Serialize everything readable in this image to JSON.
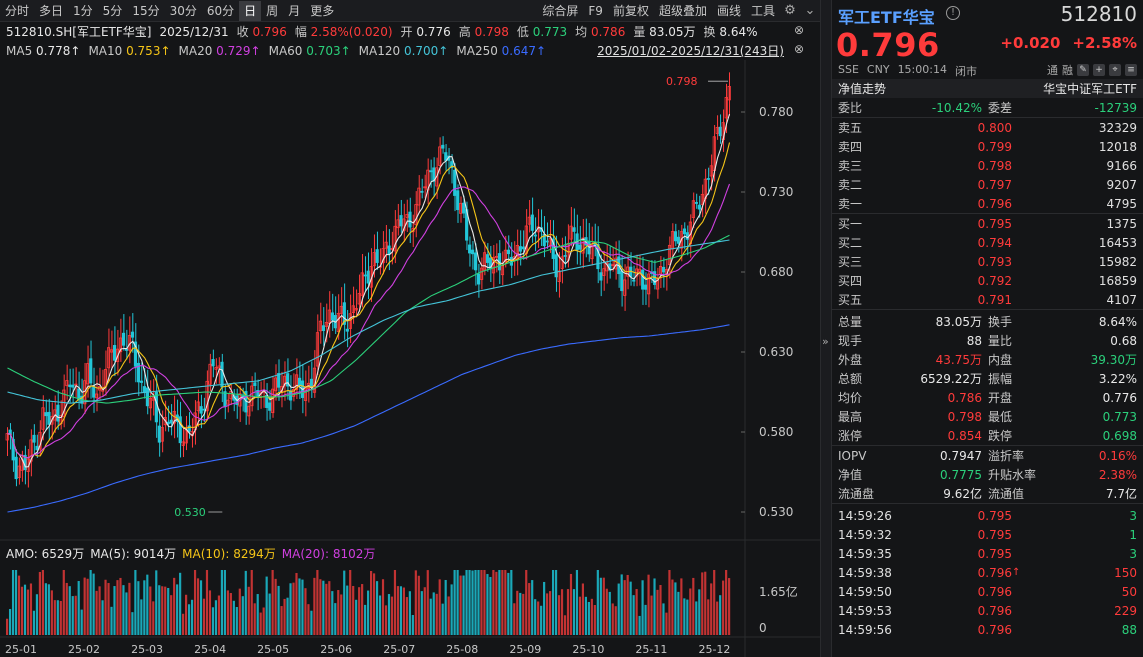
{
  "toolbar": {
    "periods": [
      "分时",
      "多日",
      "1分",
      "5分",
      "15分",
      "30分",
      "60分",
      "日",
      "周",
      "月",
      "更多"
    ],
    "active_period": "日",
    "tools": [
      "综合屏",
      "F9",
      "前复权",
      "超级叠加",
      "画线",
      "工具"
    ],
    "icons": [
      "gear-icon",
      "chevron-down-icon"
    ]
  },
  "info": {
    "symbol": "512810.SH[军工ETF华宝]",
    "date": "2025/12/31",
    "close_label": "收",
    "close": "0.796",
    "amp_label": "幅",
    "amp": "2.58%(0.020)",
    "open_label": "开",
    "open": "0.776",
    "high_label": "高",
    "high": "0.798",
    "low_label": "低",
    "low": "0.773",
    "avg_label": "均",
    "avg": "0.786",
    "vol_label": "量",
    "vol": "83.05万",
    "turn_label": "换",
    "turn": "8.64%"
  },
  "ma": [
    {
      "label": "MA5",
      "value": "0.778↑",
      "color": "#e8e8e8"
    },
    {
      "label": "MA10",
      "value": "0.753↑",
      "color": "#f5c518"
    },
    {
      "label": "MA20",
      "value": "0.729↑",
      "color": "#d040e0"
    },
    {
      "label": "MA60",
      "value": "0.703↑",
      "color": "#2bd07b"
    },
    {
      "label": "MA120",
      "value": "0.700↑",
      "color": "#44c4d8"
    },
    {
      "label": "MA250",
      "value": "0.647↑",
      "color": "#3a6bff"
    }
  ],
  "range": "2025/01/02-2025/12/31(243日)",
  "chart_data": {
    "type": "candlestick",
    "y_ticks": [
      "0.780",
      "0.730",
      "0.680",
      "0.630",
      "0.580",
      "0.530"
    ],
    "ylim": [
      0.525,
      0.8
    ],
    "x_ticks": [
      "25-01",
      "25-02",
      "25-03",
      "25-04",
      "25-05",
      "25-06",
      "25-07",
      "25-08",
      "25-09",
      "25-10",
      "25-11",
      "25-12"
    ],
    "high_marker": "0.798",
    "low_marker": "0.530",
    "close_path": [
      0.575,
      0.56,
      0.558,
      0.572,
      0.59,
      0.585,
      0.598,
      0.61,
      0.603,
      0.615,
      0.6,
      0.622,
      0.628,
      0.64,
      0.632,
      0.61,
      0.6,
      0.58,
      0.59,
      0.582,
      0.578,
      0.585,
      0.6,
      0.625,
      0.61,
      0.6,
      0.598,
      0.602,
      0.605,
      0.6,
      0.605,
      0.612,
      0.608,
      0.605,
      0.61,
      0.64,
      0.655,
      0.65,
      0.648,
      0.66,
      0.672,
      0.69,
      0.685,
      0.7,
      0.712,
      0.708,
      0.725,
      0.735,
      0.748,
      0.755,
      0.74,
      0.715,
      0.69,
      0.68,
      0.685,
      0.69,
      0.684,
      0.693,
      0.7,
      0.71,
      0.705,
      0.69,
      0.682,
      0.7,
      0.702,
      0.695,
      0.69,
      0.68,
      0.684,
      0.678,
      0.675,
      0.68,
      0.672,
      0.676,
      0.69,
      0.7,
      0.705,
      0.715,
      0.73,
      0.75,
      0.77,
      0.796
    ],
    "ma250_path": [
      0.53,
      0.533,
      0.537,
      0.542,
      0.548,
      0.553,
      0.557,
      0.56,
      0.563,
      0.566,
      0.57,
      0.573,
      0.578,
      0.584,
      0.592,
      0.6,
      0.608,
      0.616,
      0.622,
      0.628,
      0.632,
      0.635,
      0.637,
      0.639,
      0.64,
      0.642,
      0.644,
      0.647
    ],
    "ma60_path": [
      0.62,
      0.612,
      0.605,
      0.6,
      0.598,
      0.6,
      0.603,
      0.604,
      0.605,
      0.604,
      0.602,
      0.602,
      0.605,
      0.612,
      0.625,
      0.64,
      0.655,
      0.665,
      0.672,
      0.68,
      0.685,
      0.69,
      0.695,
      0.7,
      0.698,
      0.69,
      0.686,
      0.69,
      0.695,
      0.703
    ],
    "ma120_path": [
      0.605,
      0.6,
      0.598,
      0.6,
      0.604,
      0.606,
      0.608,
      0.61,
      0.612,
      0.618,
      0.628,
      0.64,
      0.65,
      0.658,
      0.662,
      0.668,
      0.672,
      0.678,
      0.682,
      0.686,
      0.69,
      0.694,
      0.697,
      0.7
    ],
    "vol_ticks": [
      "1.65亿",
      "0"
    ],
    "amo": {
      "label": "AMO: 6529万",
      "ma5": "MA(5): 9014万",
      "ma10": "MA(10): 8294万",
      "ma20": "MA(20): 8102万"
    }
  },
  "right": {
    "name": "军工ETF华宝",
    "code": "512810",
    "price": "0.796",
    "change": "+0.020",
    "change_pct": "+2.58%",
    "exchange": "SSE",
    "currency": "CNY",
    "time": "15:00:14",
    "status": "闭市",
    "tags": [
      "通",
      "融"
    ],
    "nav_label": "净值走势",
    "index_name": "华宝中证军工ETF",
    "weibi_label": "委比",
    "weibi": "-10.42%",
    "weicha_label": "委差",
    "weicha": "-12739",
    "asks": [
      {
        "label": "卖五",
        "price": "0.800",
        "vol": "32329"
      },
      {
        "label": "卖四",
        "price": "0.799",
        "vol": "12018"
      },
      {
        "label": "卖三",
        "price": "0.798",
        "vol": "9166"
      },
      {
        "label": "卖二",
        "price": "0.797",
        "vol": "9207"
      },
      {
        "label": "卖一",
        "price": "0.796",
        "vol": "4795"
      }
    ],
    "bids": [
      {
        "label": "买一",
        "price": "0.795",
        "vol": "1375"
      },
      {
        "label": "买二",
        "price": "0.794",
        "vol": "16453"
      },
      {
        "label": "买三",
        "price": "0.793",
        "vol": "15982"
      },
      {
        "label": "买四",
        "price": "0.792",
        "vol": "16859"
      },
      {
        "label": "买五",
        "price": "0.791",
        "vol": "4107"
      }
    ],
    "stats": [
      {
        "l1": "总量",
        "v1": "83.05万",
        "c1": "white",
        "l2": "换手",
        "v2": "8.64%",
        "c2": "white"
      },
      {
        "l1": "现手",
        "v1": "88",
        "c1": "white",
        "l2": "量比",
        "v2": "0.68",
        "c2": "white"
      },
      {
        "l1": "外盘",
        "v1": "43.75万",
        "c1": "up",
        "l2": "内盘",
        "v2": "39.30万",
        "c2": "down"
      },
      {
        "l1": "总额",
        "v1": "6529.22万",
        "c1": "white",
        "l2": "振幅",
        "v2": "3.22%",
        "c2": "white"
      },
      {
        "l1": "均价",
        "v1": "0.786",
        "c1": "up",
        "l2": "开盘",
        "v2": "0.776",
        "c2": "white"
      },
      {
        "l1": "最高",
        "v1": "0.798",
        "c1": "up",
        "l2": "最低",
        "v2": "0.773",
        "c2": "down"
      },
      {
        "l1": "涨停",
        "v1": "0.854",
        "c1": "up",
        "l2": "跌停",
        "v2": "0.698",
        "c2": "down"
      }
    ],
    "stats2": [
      {
        "l1": "IOPV",
        "v1": "0.7947",
        "c1": "white",
        "l2": "溢折率",
        "v2": "0.16%",
        "c2": "up"
      },
      {
        "l1": "净值",
        "v1": "0.7775",
        "c1": "down",
        "l2": "升贴水率",
        "v2": "2.38%",
        "c2": "up"
      },
      {
        "l1": "流通盘",
        "v1": "9.62亿",
        "c1": "white",
        "l2": "流通值",
        "v2": "7.7亿",
        "c2": "white"
      }
    ],
    "ticks": [
      {
        "time": "14:59:26",
        "price": "0.795",
        "arrow": "",
        "vol": "3"
      },
      {
        "time": "14:59:32",
        "price": "0.795",
        "arrow": "",
        "vol": "1"
      },
      {
        "time": "14:59:35",
        "price": "0.795",
        "arrow": "",
        "vol": "3"
      },
      {
        "time": "14:59:38",
        "price": "0.796",
        "arrow": "↑",
        "vol": "150"
      },
      {
        "time": "14:59:50",
        "price": "0.796",
        "arrow": "",
        "vol": "50"
      },
      {
        "time": "14:59:53",
        "price": "0.796",
        "arrow": "",
        "vol": "229"
      },
      {
        "time": "14:59:56",
        "price": "0.796",
        "arrow": "",
        "vol": "88"
      }
    ]
  }
}
